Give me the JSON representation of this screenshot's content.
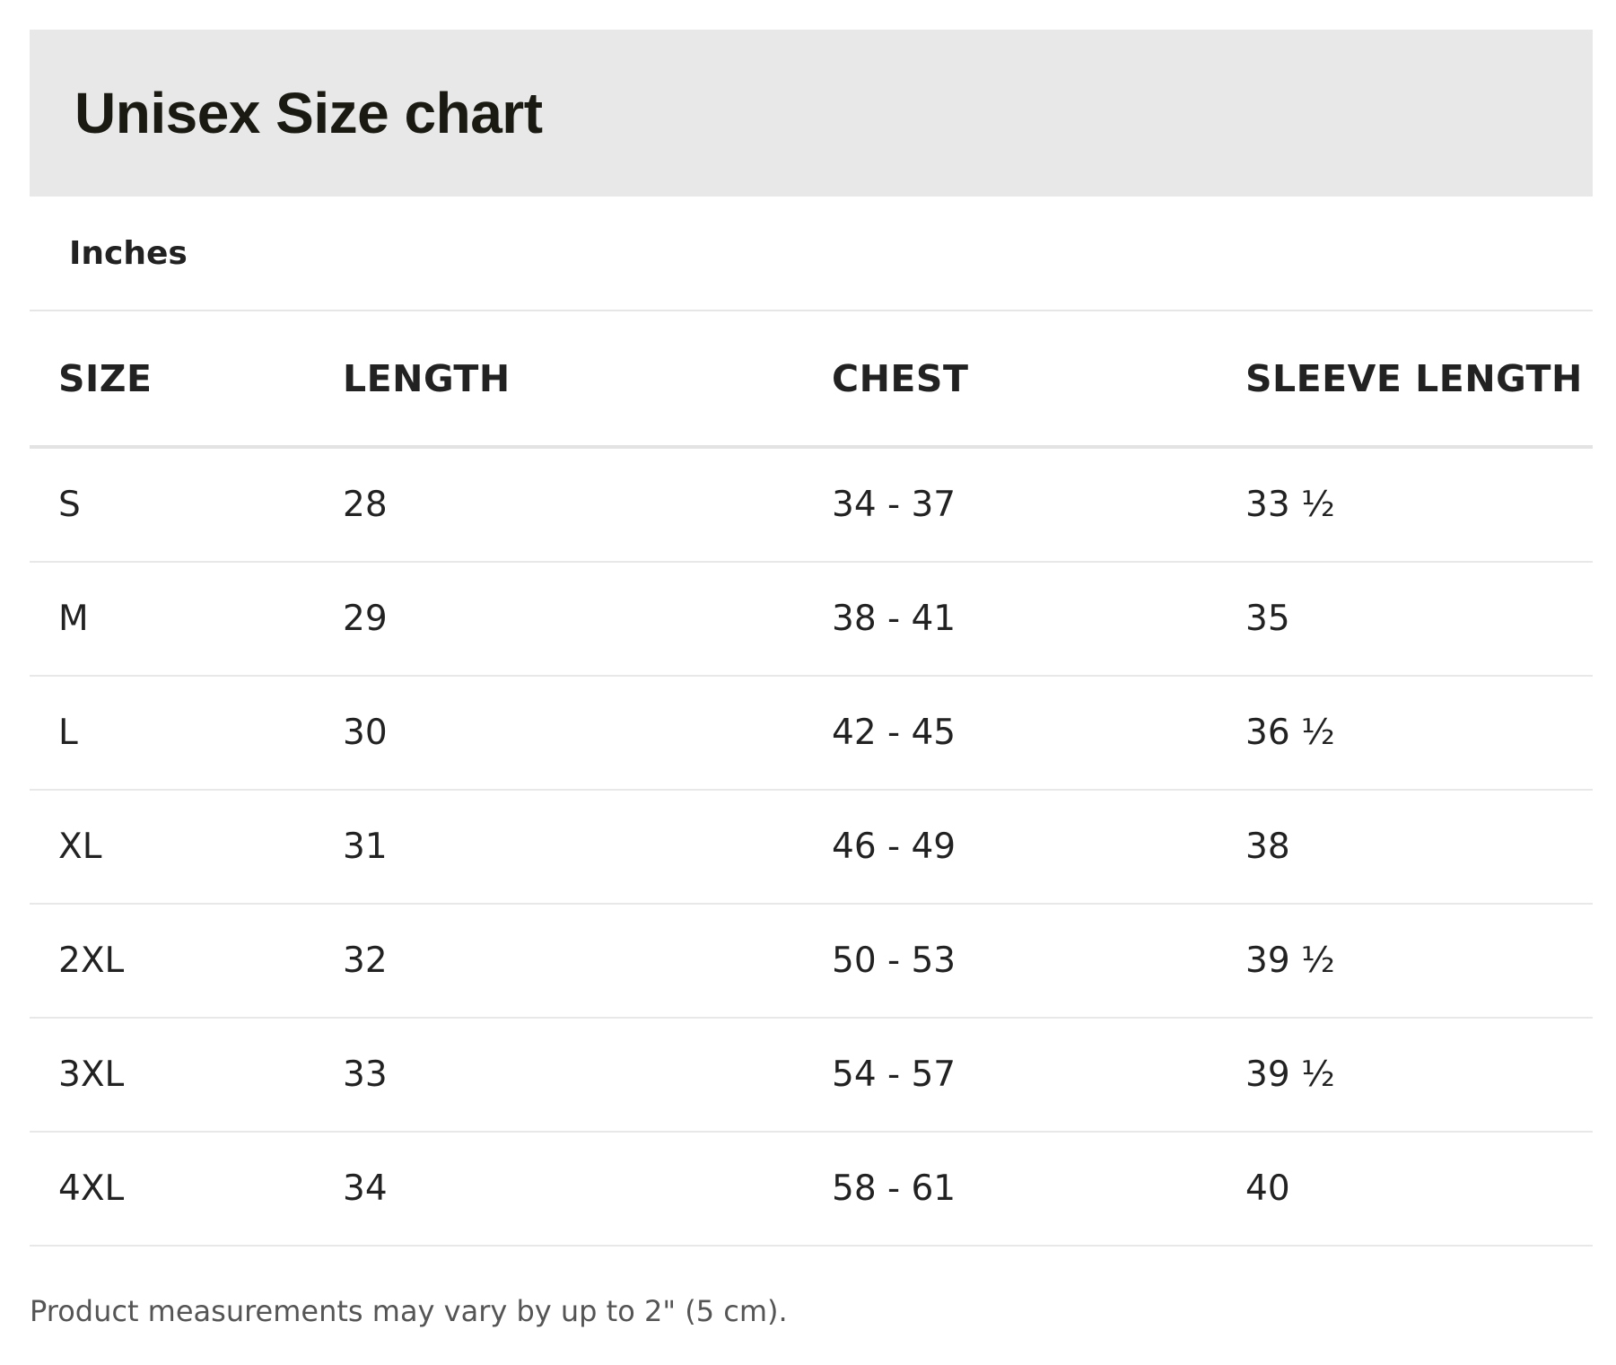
{
  "header": {
    "title": "Unisex Size chart"
  },
  "unit": {
    "label": "Inches"
  },
  "table": {
    "columns": [
      "SIZE",
      "LENGTH",
      "CHEST",
      "SLEEVE LENGTH"
    ],
    "rows": [
      [
        "S",
        "28",
        "34 - 37",
        "33 ½"
      ],
      [
        "M",
        "29",
        "38 - 41",
        "35"
      ],
      [
        "L",
        "30",
        "42 - 45",
        "36 ½"
      ],
      [
        "XL",
        "31",
        "46 - 49",
        "38"
      ],
      [
        "2XL",
        "32",
        "50 - 53",
        "39 ½"
      ],
      [
        "3XL",
        "33",
        "54 - 57",
        "39 ½"
      ],
      [
        "4XL",
        "34",
        "58 - 61",
        "40"
      ]
    ]
  },
  "footer": {
    "note": "Product measurements may vary by up to 2\" (5 cm)."
  },
  "colors": {
    "header_background": "#e8e8e8",
    "text": "#222222",
    "muted_text": "#555555",
    "rule": "#e6e6e6"
  }
}
